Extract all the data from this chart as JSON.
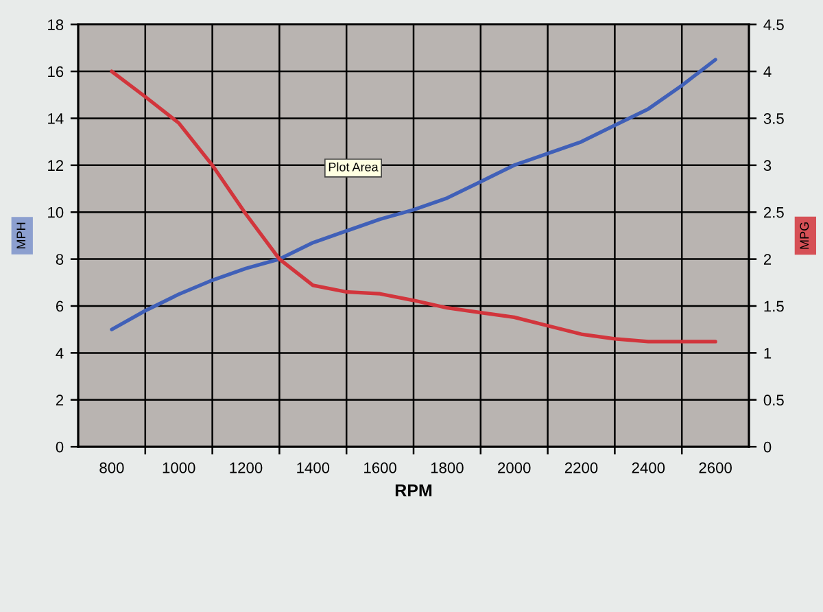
{
  "chart_data": {
    "type": "line",
    "xlabel": "RPM",
    "ylabel": "MPH",
    "y2label": "MPG",
    "x": [
      800,
      900,
      1000,
      1100,
      1200,
      1300,
      1400,
      1500,
      1600,
      1700,
      1800,
      1900,
      2000,
      2100,
      2200,
      2300,
      2400,
      2500,
      2600
    ],
    "series": [
      {
        "color": "#4060b8",
        "values": [
          5.0,
          5.8,
          6.5,
          7.1,
          7.6,
          8.0,
          8.7,
          9.2,
          9.7,
          10.1,
          10.6,
          11.3,
          12.0,
          12.5,
          13.0,
          13.7,
          14.4,
          15.4,
          16.5
        ]
      },
      {
        "color": "#d2353c",
        "axis": "y2",
        "values": [
          4.0,
          3.73,
          3.45,
          3.0,
          2.48,
          2.0,
          1.72,
          1.65,
          1.63,
          1.56,
          1.48,
          1.43,
          1.38,
          1.29,
          1.2,
          1.15,
          1.12,
          1.12,
          1.12
        ]
      }
    ],
    "xlim": [
      700,
      2700
    ],
    "xticks": [
      800,
      {
        "value": 900,
        "label": null
      },
      1000,
      {
        "value": 1100,
        "label": null
      },
      1200,
      {
        "value": 1300,
        "label": null
      },
      1400,
      {
        "value": 1500,
        "label": null
      },
      1600,
      {
        "value": 1700,
        "label": null
      },
      1800,
      {
        "value": 1900,
        "label": null
      },
      2000,
      {
        "value": 2100,
        "label": null
      },
      2200,
      {
        "value": 2300,
        "label": null
      },
      2400,
      {
        "value": 2500,
        "label": null
      },
      2600
    ],
    "ylim": [
      0,
      18
    ],
    "yticks": [
      0,
      2,
      4,
      6,
      8,
      10,
      12,
      14,
      16,
      18
    ],
    "y2lim": [
      0,
      4.5
    ],
    "y2ticks": [
      0,
      0.5,
      1,
      1.5,
      2,
      2.5,
      3,
      3.5,
      4,
      4.5
    ],
    "grid": true,
    "line_style": "solid",
    "annotations": [
      "Plot Area"
    ]
  }
}
